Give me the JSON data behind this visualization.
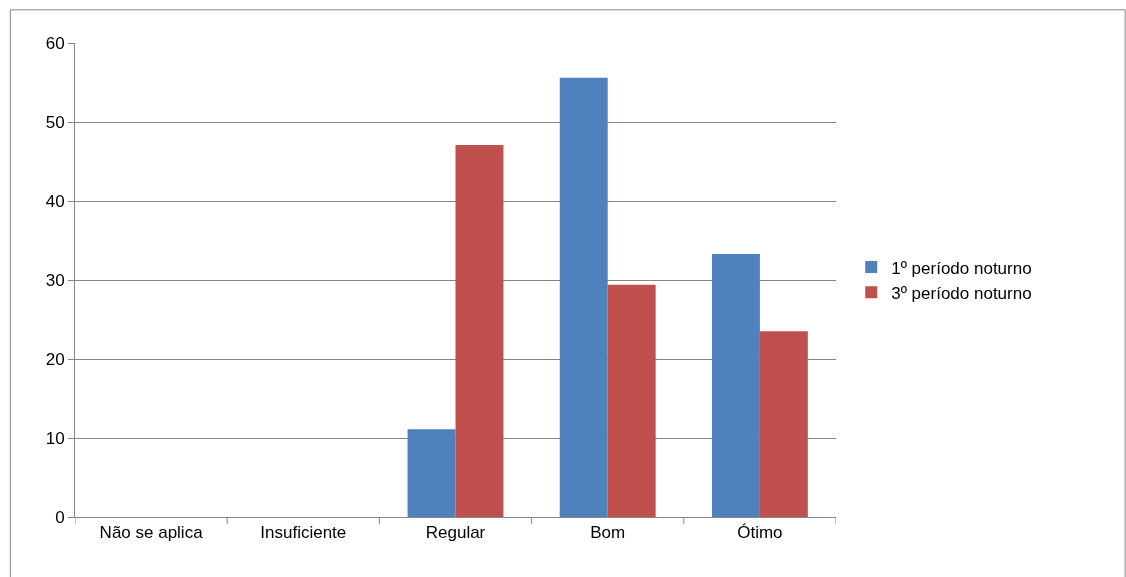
{
  "chart_data": {
    "type": "bar",
    "categories": [
      "Não se aplica",
      "Insuficiente",
      "Regular",
      "Bom",
      "Ótimo"
    ],
    "series": [
      {
        "name": "1º período noturno",
        "color": "#4f81bd",
        "values": [
          0,
          0,
          11.1,
          55.6,
          33.3
        ]
      },
      {
        "name": "3º período noturno",
        "color": "#c0504d",
        "values": [
          0,
          0,
          47.1,
          29.4,
          23.5
        ]
      }
    ],
    "ylim": [
      0,
      60
    ],
    "yticks": [
      0,
      10,
      20,
      30,
      40,
      50,
      60
    ],
    "grid": "y",
    "legend": "right"
  }
}
